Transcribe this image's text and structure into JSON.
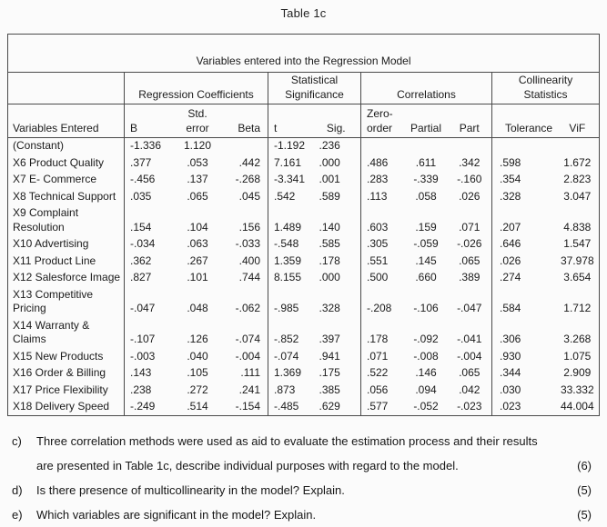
{
  "page_title": "Table 1c",
  "table": {
    "caption": "Variables entered into the Regression Model",
    "groups": [
      "Regression Coefficients",
      "Statistical\nSignificance",
      "Correlations",
      "Collinearity\nStatistics"
    ],
    "columns": [
      "Variables Entered",
      "B",
      "Std.\nerror",
      "Beta",
      "t",
      "Sig.",
      "Zero-\norder",
      "Partial",
      "Part",
      "Tolerance",
      "ViF"
    ],
    "rows": [
      {
        "label": "(Constant)",
        "values": [
          "-1.336",
          "1.120",
          "",
          "-1.192",
          ".236",
          "",
          "",
          "",
          "",
          ""
        ]
      },
      {
        "label": "X6 Product Quality",
        "values": [
          ".377",
          ".053",
          ".442",
          "7.161",
          ".000",
          ".486",
          ".611",
          ".342",
          ".598",
          "1.672"
        ]
      },
      {
        "label": "X7 E- Commerce",
        "values": [
          "-.456",
          ".137",
          "-.268",
          "-3.341",
          ".001",
          ".283",
          "-.339",
          "-.160",
          ".354",
          "2.823"
        ]
      },
      {
        "label": "X8 Technical Support",
        "values": [
          ".035",
          ".065",
          ".045",
          ".542",
          ".589",
          ".113",
          ".058",
          ".026",
          ".328",
          "3.047"
        ]
      },
      {
        "label": "X9 Complaint\nResolution",
        "values": [
          ".154",
          ".104",
          ".156",
          "1.489",
          ".140",
          ".603",
          ".159",
          ".071",
          ".207",
          "4.838"
        ]
      },
      {
        "label": "X10 Advertising",
        "values": [
          "-.034",
          ".063",
          "-.033",
          "-.548",
          ".585",
          ".305",
          "-.059",
          "-.026",
          ".646",
          "1.547"
        ]
      },
      {
        "label": "X11 Product Line",
        "values": [
          ".362",
          ".267",
          ".400",
          "1.359",
          ".178",
          ".551",
          ".145",
          ".065",
          ".026",
          "37.978"
        ]
      },
      {
        "label": "X12 Salesforce Image",
        "values": [
          ".827",
          ".101",
          ".744",
          "8.155",
          ".000",
          ".500",
          ".660",
          ".389",
          ".274",
          "3.654"
        ]
      },
      {
        "label": "X13 Competitive\nPricing",
        "values": [
          "-.047",
          ".048",
          "-.062",
          "-.985",
          ".328",
          "-.208",
          "-.106",
          "-.047",
          ".584",
          "1.712"
        ]
      },
      {
        "label": "X14 Warranty &\nClaims",
        "values": [
          "-.107",
          ".126",
          "-.074",
          "-.852",
          ".397",
          ".178",
          "-.092",
          "-.041",
          ".306",
          "3.268"
        ]
      },
      {
        "label": "X15 New Products",
        "values": [
          "-.003",
          ".040",
          "-.004",
          "-.074",
          ".941",
          ".071",
          "-.008",
          "-.004",
          ".930",
          "1.075"
        ]
      },
      {
        "label": "X16 Order & Billing",
        "values": [
          ".143",
          ".105",
          ".111",
          "1.369",
          ".175",
          ".522",
          ".146",
          ".065",
          ".344",
          "2.909"
        ]
      },
      {
        "label": "X17 Price Flexibility",
        "values": [
          ".238",
          ".272",
          ".241",
          ".873",
          ".385",
          ".056",
          ".094",
          ".042",
          ".030",
          "33.332"
        ]
      },
      {
        "label": "X18 Delivery Speed",
        "values": [
          "-.249",
          ".514",
          "-.154",
          "-.485",
          ".629",
          ".577",
          "-.052",
          "-.023",
          ".023",
          "44.004"
        ]
      }
    ]
  },
  "questions": [
    {
      "label": "c)",
      "text": "Three correlation methods were used as aid to evaluate the estimation process and their results\nare presented in Table 1c, describe individual purposes with regard to the model.",
      "marks": "(6)"
    },
    {
      "label": "d)",
      "text": "Is there presence of multicollinearity in the model? Explain.",
      "marks": "(5)"
    },
    {
      "label": "e)",
      "text": "Which variables are significant in the model? Explain.",
      "marks": "(5)"
    }
  ]
}
